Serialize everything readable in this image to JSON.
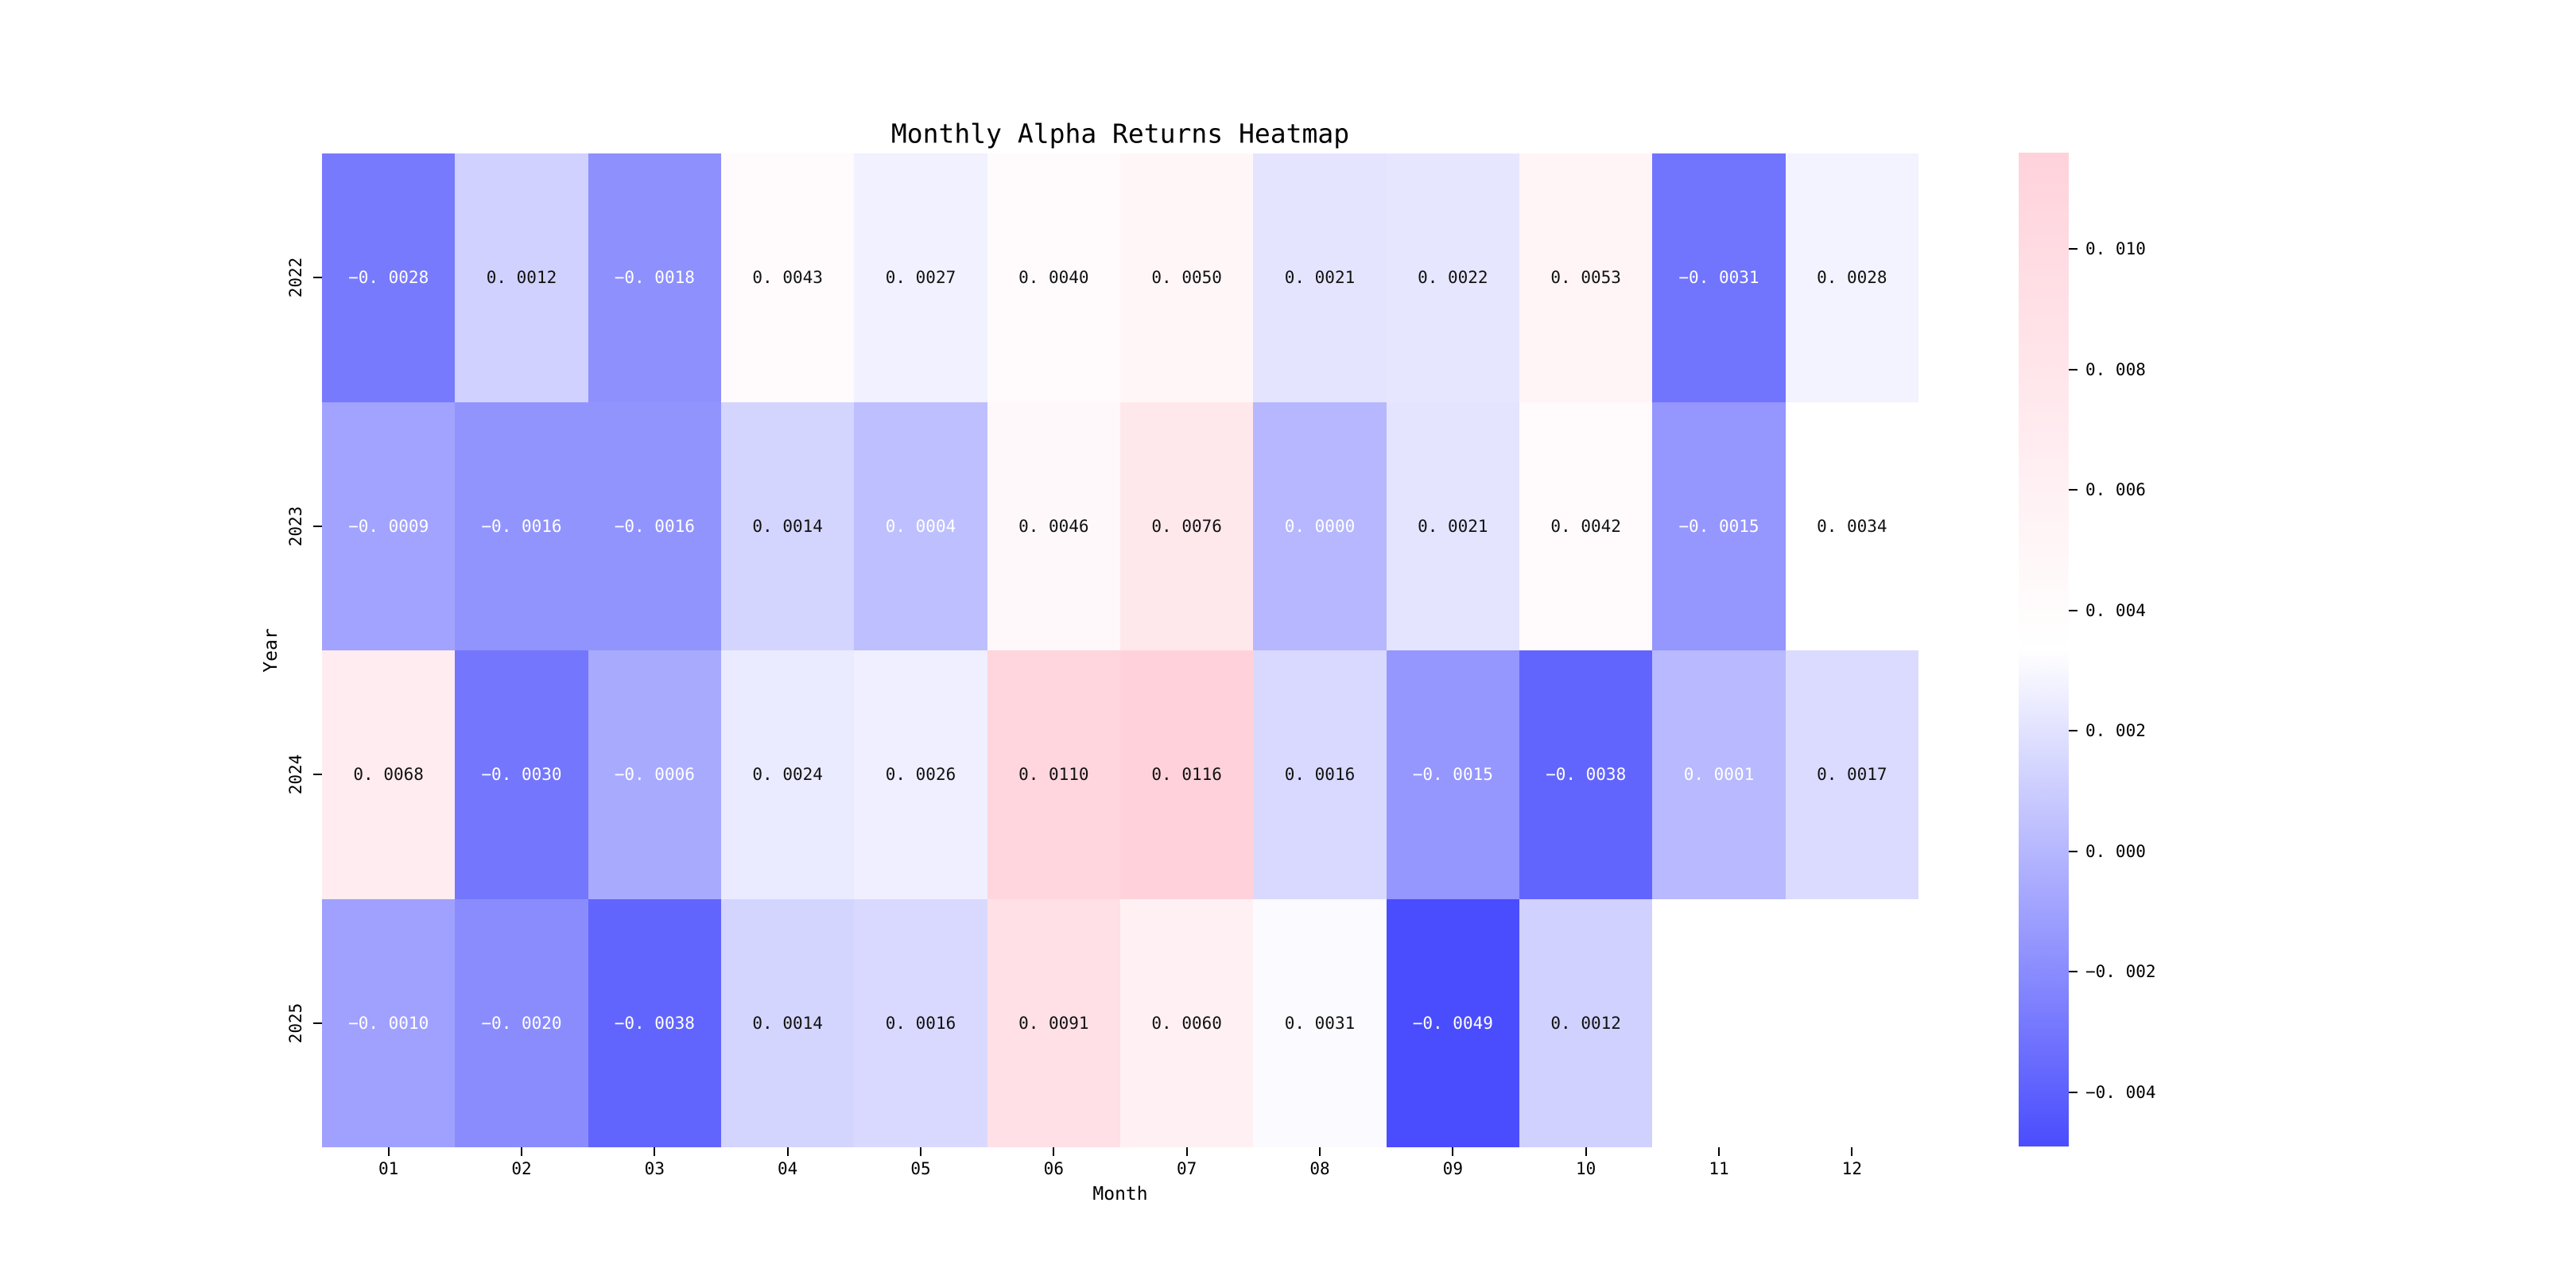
{
  "title": "Monthly Alpha Returns Heatmap",
  "chart_data": {
    "type": "heatmap",
    "title": "Monthly Alpha Returns Heatmap",
    "xlabel": "Month",
    "ylabel": "Year",
    "x_categories": [
      "01",
      "02",
      "03",
      "04",
      "05",
      "06",
      "07",
      "08",
      "09",
      "10",
      "11",
      "12"
    ],
    "y_categories": [
      "2022",
      "2023",
      "2024",
      "2025"
    ],
    "values": [
      [
        -0.0028,
        0.0012,
        -0.0018,
        0.0043,
        0.0027,
        0.004,
        0.005,
        0.0021,
        0.0022,
        0.0053,
        -0.0031,
        0.0028
      ],
      [
        -0.0009,
        -0.0016,
        -0.0016,
        0.0014,
        0.0004,
        0.0046,
        0.0076,
        0.0,
        0.0021,
        0.0042,
        -0.0015,
        0.0034
      ],
      [
        0.0068,
        -0.003,
        -0.0006,
        0.0024,
        0.0026,
        0.011,
        0.0116,
        0.0016,
        -0.0015,
        -0.0038,
        0.0001,
        0.0017
      ],
      [
        -0.001,
        -0.002,
        -0.0038,
        0.0014,
        0.0016,
        0.0091,
        0.006,
        0.0031,
        -0.0049,
        0.0012,
        null,
        null
      ]
    ],
    "annotation_decimals": 4,
    "annot_light_text_below": 0.0008,
    "vmin": -0.0049,
    "vmax": 0.0116,
    "colorbar": {
      "position": "right",
      "ticks": [
        0.01,
        0.008,
        0.006,
        0.004,
        0.002,
        0.0,
        -0.002,
        -0.004
      ],
      "tick_decimals": 3,
      "color_max": "#FFD2DB",
      "color_mid": "#FFFFFF",
      "color_min": "#4A4DFD"
    },
    "annot_dark_text_color": "#111111",
    "annot_light_text_color": "#FFFFFF",
    "grid": false
  }
}
